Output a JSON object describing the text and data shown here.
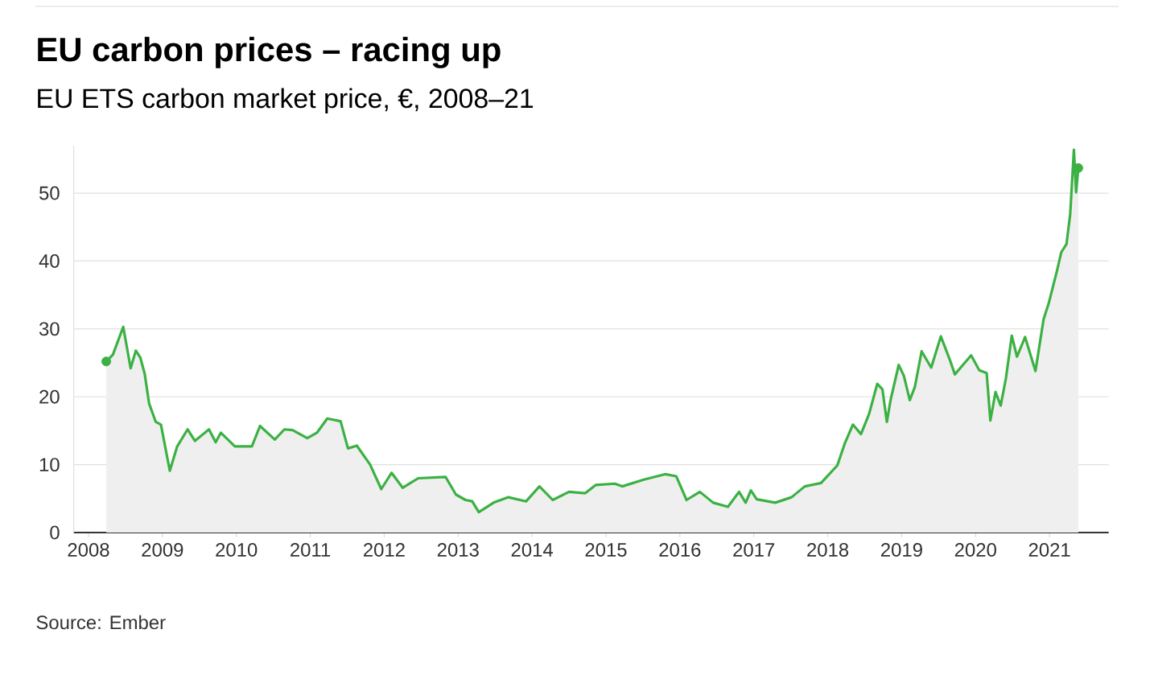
{
  "chart_data": {
    "type": "area",
    "title": "EU carbon prices – racing up",
    "subtitle": "EU ETS carbon market price, €, 2008–21",
    "annotations": [
      "Source: Ember"
    ],
    "xlim": [
      2007.8,
      2021.8
    ],
    "xticks": [
      2008,
      2009,
      2010,
      2011,
      2012,
      2013,
      2014,
      2015,
      2016,
      2017,
      2018,
      2019,
      2020,
      2021
    ],
    "ylim": [
      0,
      57
    ],
    "yticks": [
      0,
      10,
      20,
      30,
      40,
      50
    ],
    "grid": "y",
    "marker": "none",
    "line_style": "solid",
    "series": [
      {
        "color": "#3bb143",
        "x": [
          2008.24,
          2008.33,
          2008.47,
          2008.57,
          2008.64,
          2008.7,
          2008.76,
          2008.82,
          2008.91,
          2008.98,
          2009.1,
          2009.2,
          2009.34,
          2009.44,
          2009.63,
          2009.72,
          2009.79,
          2009.98,
          2010.21,
          2010.32,
          2010.52,
          2010.65,
          2010.76,
          2010.96,
          2011.09,
          2011.23,
          2011.41,
          2011.51,
          2011.63,
          2011.81,
          2011.96,
          2012.1,
          2012.25,
          2012.46,
          2012.83,
          2012.97,
          2013.1,
          2013.19,
          2013.28,
          2013.48,
          2013.68,
          2013.92,
          2014.1,
          2014.28,
          2014.5,
          2014.72,
          2014.86,
          2015.12,
          2015.22,
          2015.51,
          2015.8,
          2015.95,
          2016.09,
          2016.27,
          2016.45,
          2016.65,
          2016.8,
          2016.89,
          2016.96,
          2017.04,
          2017.29,
          2017.51,
          2017.69,
          2017.91,
          2018.13,
          2018.23,
          2018.34,
          2018.45,
          2018.56,
          2018.67,
          2018.74,
          2018.8,
          2018.85,
          2018.96,
          2019.03,
          2019.11,
          2019.18,
          2019.27,
          2019.4,
          2019.53,
          2019.65,
          2019.72,
          2019.83,
          2019.94,
          2020.05,
          2020.15,
          2020.2,
          2020.27,
          2020.34,
          2020.41,
          2020.49,
          2020.56,
          2020.67,
          2020.81,
          2020.92,
          2020.99,
          2021.1,
          2021.16,
          2021.23,
          2021.28,
          2021.33,
          2021.36,
          2021.39
        ],
        "values": [
          25.2,
          26.2,
          30.3,
          24.2,
          26.8,
          25.8,
          23.4,
          19.0,
          16.3,
          15.9,
          9.1,
          12.7,
          15.2,
          13.5,
          15.2,
          13.3,
          14.7,
          12.7,
          12.7,
          15.7,
          13.7,
          15.2,
          15.1,
          13.9,
          14.7,
          16.8,
          16.4,
          12.4,
          12.8,
          10.0,
          6.4,
          8.8,
          6.6,
          8.0,
          8.2,
          5.6,
          4.8,
          4.6,
          3.0,
          4.4,
          5.2,
          4.6,
          6.8,
          4.8,
          6.0,
          5.8,
          7.0,
          7.2,
          6.8,
          7.8,
          8.6,
          8.3,
          4.8,
          6.0,
          4.4,
          3.8,
          6.0,
          4.4,
          6.2,
          4.9,
          4.4,
          5.2,
          6.8,
          7.3,
          9.9,
          13.1,
          15.9,
          14.5,
          17.5,
          21.9,
          21.1,
          16.3,
          19.5,
          24.7,
          23.1,
          19.5,
          21.5,
          26.7,
          24.3,
          28.9,
          25.5,
          23.3,
          24.7,
          26.1,
          23.9,
          23.5,
          16.5,
          20.7,
          18.7,
          22.7,
          29.0,
          25.9,
          28.8,
          23.8,
          31.4,
          33.8,
          38.5,
          41.3,
          42.5,
          46.9,
          56.4,
          50.1,
          53.7
        ]
      }
    ]
  }
}
